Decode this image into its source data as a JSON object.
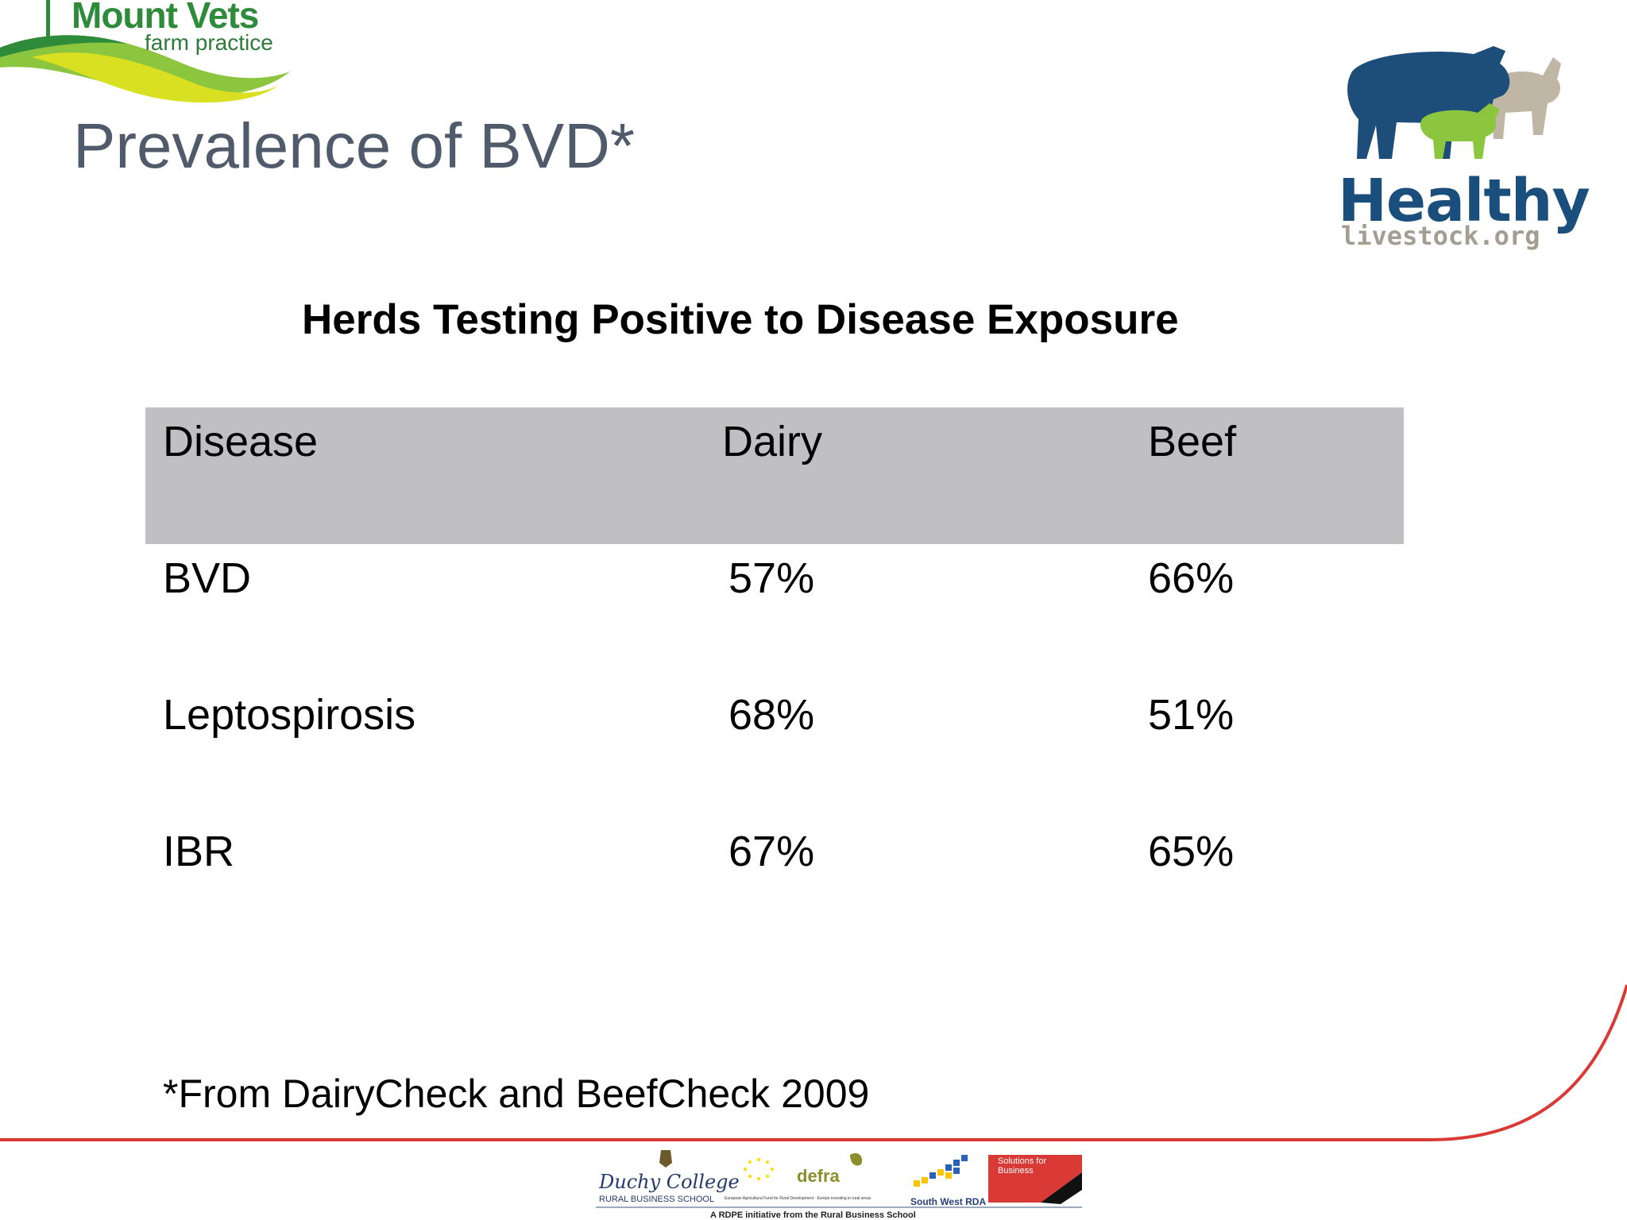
{
  "logo_left": {
    "name": "Mount Vets",
    "subtitle": "farm practice"
  },
  "logo_right": {
    "name": "Healthy",
    "url": "livestock.org"
  },
  "slide": {
    "title": "Prevalence of BVD*",
    "subtitle": "Herds Testing Positive to Disease Exposure",
    "footnote": "*From DairyCheck and BeefCheck 2009"
  },
  "table": {
    "headers": [
      "Disease",
      "Dairy",
      "Beef"
    ],
    "rows": [
      [
        "BVD",
        "57%",
        "66%"
      ],
      [
        "Leptospirosis",
        "68%",
        "51%"
      ],
      [
        "IBR",
        "67%",
        "65%"
      ]
    ]
  },
  "sponsors": {
    "duchy": "Duchy College",
    "rbs": "RURAL BUSINESS SCHOOL",
    "defra": "defra",
    "eu_small": "European Agricultural Fund for Rural Development · Europe investing in rural areas",
    "swrda": "South West RDA",
    "sfb": "Solutions for Business",
    "rdpe": "A RDPE initiative from the Rural Business School"
  },
  "colors": {
    "title": "#4f5a6b",
    "header_fill": "#c0bfc2",
    "accent_red": "#d93a35",
    "logo_green": "#2e8b3a",
    "logo_blue": "#1a4e7c"
  }
}
